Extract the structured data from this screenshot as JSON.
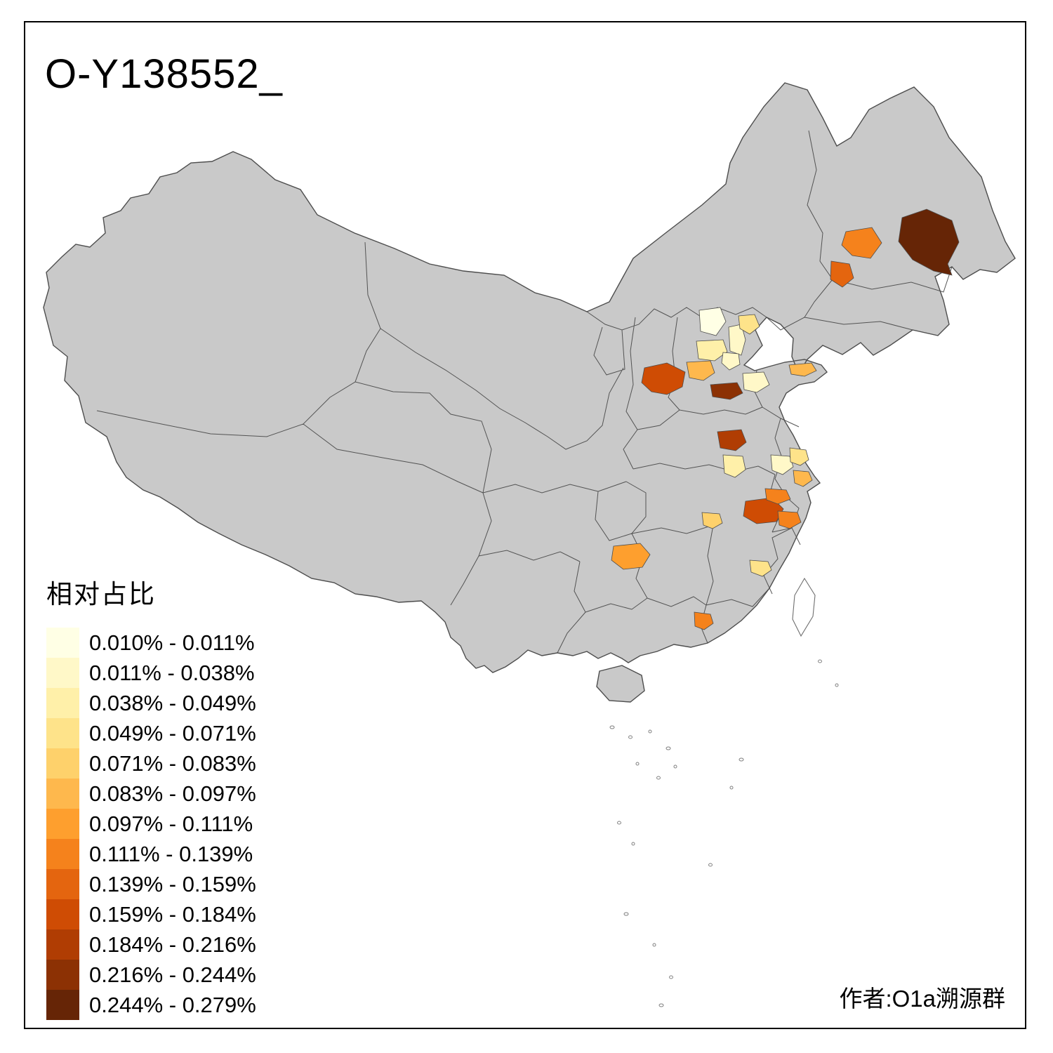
{
  "title": "O-Y138552_",
  "caption": "作者:O1a溯源群",
  "legend": {
    "title": "相对占比",
    "items": [
      {
        "label": "0.010% - 0.011%",
        "color": "#FFFFE5"
      },
      {
        "label": "0.011% - 0.038%",
        "color": "#FFF8C8"
      },
      {
        "label": "0.038% - 0.049%",
        "color": "#FFF0A9"
      },
      {
        "label": "0.049% - 0.071%",
        "color": "#FEE38A"
      },
      {
        "label": "0.071% - 0.083%",
        "color": "#FED16B"
      },
      {
        "label": "0.083% - 0.097%",
        "color": "#FEB84D"
      },
      {
        "label": "0.097% - 0.111%",
        "color": "#FE9F2E"
      },
      {
        "label": "0.111% - 0.139%",
        "color": "#F5821C"
      },
      {
        "label": "0.139% - 0.159%",
        "color": "#E4650F"
      },
      {
        "label": "0.159% - 0.184%",
        "color": "#CF4C04"
      },
      {
        "label": "0.184% - 0.216%",
        "color": "#B03D03"
      },
      {
        "label": "0.216% - 0.244%",
        "color": "#8C3104"
      },
      {
        "label": "0.244% - 0.279%",
        "color": "#662506"
      }
    ]
  },
  "map": {
    "land_color": "#C9C9C9",
    "border_color": "#4D4D4D",
    "background": "#FFFFFF",
    "regions": [
      {
        "id": "r1",
        "color": "#662506"
      },
      {
        "id": "r2",
        "color": "#F5821C"
      },
      {
        "id": "r3",
        "color": "#E4650F"
      },
      {
        "id": "r4",
        "color": "#FFFFE5"
      },
      {
        "id": "r5",
        "color": "#FFF8C8"
      },
      {
        "id": "r6",
        "color": "#FEE38A"
      },
      {
        "id": "r7",
        "color": "#FFF0A9"
      },
      {
        "id": "r8",
        "color": "#FFF8C8"
      },
      {
        "id": "r9",
        "color": "#CF4C04"
      },
      {
        "id": "r10",
        "color": "#FEB84D"
      },
      {
        "id": "r11",
        "color": "#8C3104"
      },
      {
        "id": "r12",
        "color": "#FFF8C8"
      },
      {
        "id": "r13",
        "color": "#FEB84D"
      },
      {
        "id": "r14",
        "color": "#B03D03"
      },
      {
        "id": "r15",
        "color": "#FFF0A9"
      },
      {
        "id": "r16",
        "color": "#FFF8C8"
      },
      {
        "id": "r17",
        "color": "#FEE38A"
      },
      {
        "id": "r18",
        "color": "#FEB84D"
      },
      {
        "id": "r19",
        "color": "#CF4C04"
      },
      {
        "id": "r20",
        "color": "#F5821C"
      },
      {
        "id": "r21",
        "color": "#F5821C"
      },
      {
        "id": "r22",
        "color": "#FED16B"
      },
      {
        "id": "r23",
        "color": "#FE9F2E"
      },
      {
        "id": "r24",
        "color": "#FEE38A"
      },
      {
        "id": "r25",
        "color": "#F5821C"
      }
    ]
  }
}
